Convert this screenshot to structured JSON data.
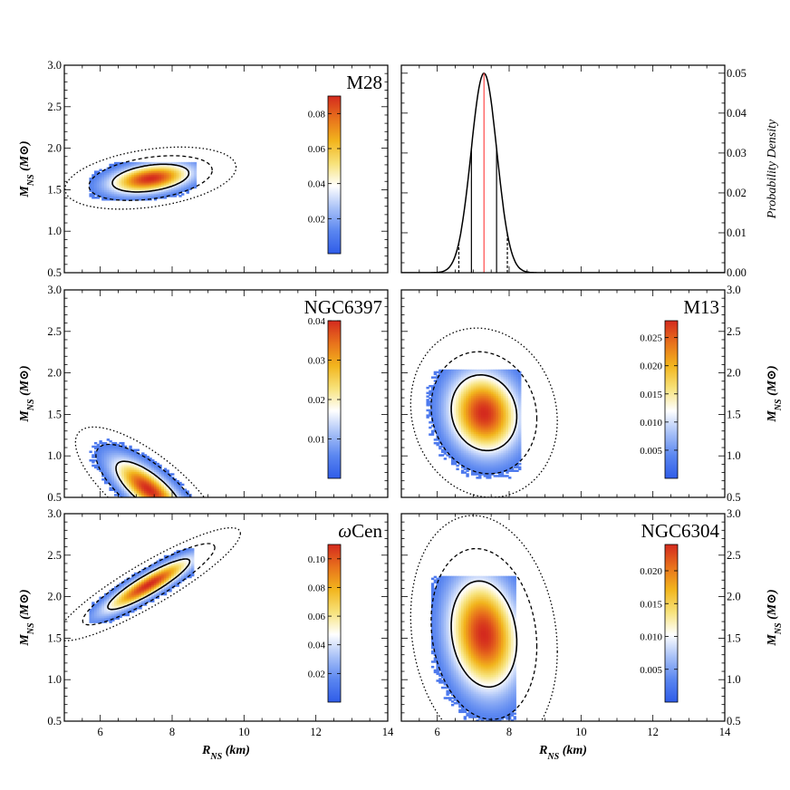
{
  "colors": {
    "colormap": [
      "#2f5ce8",
      "#5a86f0",
      "#a7c0f7",
      "#ffffff",
      "#f7e27a",
      "#f2b51d",
      "#e8721c",
      "#d42a1e"
    ],
    "axis": "#000000",
    "median_line": "#ff4a4a",
    "pdf_line": "#000000"
  },
  "chart_data": [
    {
      "type": "heatmap",
      "panel": "M28",
      "label": "M28",
      "xlabel": "",
      "ylabel": "M_NS (M_⊙)",
      "xlim": [
        5,
        14
      ],
      "ylim": [
        0.5,
        3.0
      ],
      "xticks": [
        6,
        8,
        10,
        12,
        14
      ],
      "yticks": [
        0.5,
        1.0,
        1.5,
        2.0,
        2.5,
        3.0
      ],
      "show_xtick_labels": false,
      "show_ytick_labels": true,
      "ylabel_side": "left",
      "peak": {
        "x": 7.4,
        "y": 1.64
      },
      "spread": {
        "x": 0.7,
        "y": 0.11,
        "rho": 0.35
      },
      "support": {
        "x": [
          5.7,
          8.7
        ],
        "y": [
          1.37,
          1.84
        ]
      },
      "colorbar": {
        "min": 0.0,
        "max": 0.09,
        "ticks": [
          "0.02",
          "0.04",
          "0.06",
          "0.08"
        ],
        "tick_values": [
          0.02,
          0.04,
          0.06,
          0.08
        ]
      }
    },
    {
      "type": "line",
      "panel": "M28 radius distribution",
      "xlabel": "",
      "ylabel": "Probability Density",
      "xlim": [
        5,
        14
      ],
      "ylim": [
        0.0,
        0.052
      ],
      "xticks": [
        6,
        8,
        10,
        12,
        14
      ],
      "yticks": [
        "0.00",
        "0.01",
        "0.02",
        "0.03",
        "0.04",
        "0.05"
      ],
      "ytick_values": [
        0.0,
        0.01,
        0.02,
        0.03,
        0.04,
        0.05
      ],
      "show_xtick_labels": false,
      "ylabel_side": "right",
      "peak_x": 7.3,
      "peak_y": 0.05,
      "sigma": 0.36,
      "median": 7.3,
      "interval_68": [
        6.95,
        7.65
      ],
      "interval_95": [
        6.6,
        7.95
      ]
    },
    {
      "type": "heatmap",
      "panel": "NGC6397",
      "label": "NGC6397",
      "xlabel": "",
      "ylabel": "M_NS (M_⊙)",
      "xlim": [
        5,
        14
      ],
      "ylim": [
        0.5,
        3.0
      ],
      "xticks": [
        6,
        8,
        10,
        12,
        14
      ],
      "yticks": [
        0.5,
        1.0,
        1.5,
        2.0,
        2.5,
        3.0
      ],
      "show_xtick_labels": false,
      "show_ytick_labels": true,
      "ylabel_side": "left",
      "peak": {
        "x": 7.35,
        "y": 0.6
      },
      "spread": {
        "x": 0.6,
        "y": 0.22,
        "rho": -0.75
      },
      "support": {
        "x": [
          5.6,
          8.5
        ],
        "y": [
          0.5,
          1.28
        ]
      },
      "colorbar": {
        "min": 0.0,
        "max": 0.04,
        "ticks": [
          "0.01",
          "0.02",
          "0.03",
          "0.04"
        ],
        "tick_values": [
          0.01,
          0.02,
          0.03,
          0.04
        ]
      }
    },
    {
      "type": "heatmap",
      "panel": "M13",
      "label": "M13",
      "xlabel": "",
      "ylabel": "M_NS (M_⊙)",
      "xlim": [
        5,
        14
      ],
      "ylim": [
        0.5,
        3.0
      ],
      "xticks": [
        6,
        8,
        10,
        12,
        14
      ],
      "yticks": [
        0.5,
        1.0,
        1.5,
        2.0,
        2.5,
        3.0
      ],
      "show_xtick_labels": false,
      "show_ytick_labels": true,
      "ylabel_side": "right",
      "peak": {
        "x": 7.3,
        "y": 1.52
      },
      "spread": {
        "x": 0.6,
        "y": 0.3,
        "rho": -0.1
      },
      "support": {
        "x": [
          5.7,
          8.3
        ],
        "y": [
          0.72,
          2.04
        ]
      },
      "colorbar": {
        "min": 0.0,
        "max": 0.028,
        "ticks": [
          "0.005",
          "0.010",
          "0.015",
          "0.020",
          "0.025"
        ],
        "tick_values": [
          0.005,
          0.01,
          0.015,
          0.02,
          0.025
        ]
      }
    },
    {
      "type": "heatmap",
      "panel": "ωCen",
      "label": "ωCen",
      "xlabel": "R_NS (km)",
      "ylabel": "M_NS (M_⊙)",
      "xlim": [
        5,
        14
      ],
      "ylim": [
        0.5,
        3.0
      ],
      "xticks": [
        6,
        8,
        10,
        12,
        14
      ],
      "yticks": [
        0.5,
        1.0,
        1.5,
        2.0,
        2.5,
        3.0
      ],
      "show_xtick_labels": true,
      "show_ytick_labels": true,
      "ylabel_side": "left",
      "peak": {
        "x": 7.35,
        "y": 2.15
      },
      "spread": {
        "x": 0.75,
        "y": 0.2,
        "rho": 0.9
      },
      "support": {
        "x": [
          5.7,
          8.6
        ],
        "y": [
          1.68,
          2.58
        ]
      },
      "colorbar": {
        "min": 0.0,
        "max": 0.11,
        "ticks": [
          "0.02",
          "0.04",
          "0.06",
          "0.08",
          "0.10"
        ],
        "tick_values": [
          0.02,
          0.04,
          0.06,
          0.08,
          0.1
        ]
      }
    },
    {
      "type": "heatmap",
      "panel": "NGC6304",
      "label": "NGC6304",
      "xlabel": "R_NS (km)",
      "ylabel": "M_NS (M_⊙)",
      "xlim": [
        5,
        14
      ],
      "ylim": [
        0.5,
        3.0
      ],
      "xticks": [
        6,
        8,
        10,
        12,
        14
      ],
      "yticks": [
        0.5,
        1.0,
        1.5,
        2.0,
        2.5,
        3.0
      ],
      "show_xtick_labels": true,
      "show_ytick_labels": true,
      "ylabel_side": "right",
      "peak": {
        "x": 7.3,
        "y": 1.55
      },
      "spread": {
        "x": 0.6,
        "y": 0.42,
        "rho": -0.15
      },
      "support": {
        "x": [
          5.8,
          8.2
        ],
        "y": [
          0.5,
          2.24
        ]
      },
      "colorbar": {
        "min": 0.0,
        "max": 0.024,
        "ticks": [
          "0.005",
          "0.010",
          "0.015",
          "0.020"
        ],
        "tick_values": [
          0.005,
          0.01,
          0.015,
          0.02
        ]
      }
    }
  ]
}
